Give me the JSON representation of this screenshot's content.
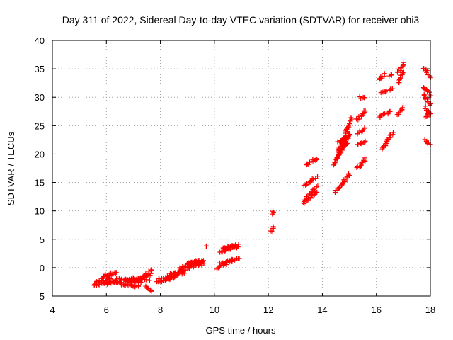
{
  "chart_data": {
    "type": "scatter",
    "title": "Day 311 of 2022, Sidereal Day-to-day VTEC variation (SDTVAR) for receiver ohi3",
    "xlabel": "GPS time / hours",
    "ylabel": "SDTVAR / TECUs",
    "xlim": [
      4,
      18
    ],
    "ylim": [
      -5,
      40
    ],
    "xticks": [
      "4",
      "6",
      "8",
      "10",
      "12",
      "14",
      "16",
      "18"
    ],
    "yticks": [
      "-5",
      "0",
      "5",
      "10",
      "15",
      "20",
      "25",
      "30",
      "35",
      "40"
    ],
    "grid": true,
    "marker": "plus",
    "color": "#ff0000",
    "segments": [
      {
        "x": [
          5.55,
          6.4
        ],
        "y": [
          -3.1,
          -2.4
        ]
      },
      {
        "x": [
          5.6,
          6.2
        ],
        "y": [
          -2.6,
          -2.0
        ]
      },
      {
        "x": [
          5.8,
          6.3
        ],
        "y": [
          -1.8,
          -1.0
        ]
      },
      {
        "x": [
          6.0,
          6.4
        ],
        "y": [
          -1.3,
          -0.9
        ]
      },
      {
        "x": [
          6.1,
          6.6
        ],
        "y": [
          -2.8,
          -2.4
        ]
      },
      {
        "x": [
          6.4,
          7.0
        ],
        "y": [
          -1.9,
          -2.5
        ]
      },
      {
        "x": [
          6.5,
          7.2
        ],
        "y": [
          -2.9,
          -3.3
        ]
      },
      {
        "x": [
          6.7,
          7.3
        ],
        "y": [
          -2.1,
          -2.6
        ]
      },
      {
        "x": [
          6.9,
          7.6
        ],
        "y": [
          -1.8,
          -2.2
        ]
      },
      {
        "x": [
          7.0,
          7.65
        ],
        "y": [
          -2.4,
          -1.2
        ]
      },
      {
        "x": [
          7.3,
          7.7
        ],
        "y": [
          -2.0,
          -0.3
        ]
      },
      {
        "x": [
          7.45,
          7.7
        ],
        "y": [
          -3.4,
          -4.1
        ]
      },
      {
        "x": [
          7.9,
          8.6
        ],
        "y": [
          -2.6,
          -1.6
        ]
      },
      {
        "x": [
          7.95,
          8.4
        ],
        "y": [
          -2.0,
          -1.4
        ]
      },
      {
        "x": [
          8.2,
          8.9
        ],
        "y": [
          -1.9,
          -0.8
        ]
      },
      {
        "x": [
          8.4,
          9.2
        ],
        "y": [
          -1.2,
          0.3
        ]
      },
      {
        "x": [
          8.7,
          9.5
        ],
        "y": [
          -0.1,
          1.4
        ]
      },
      {
        "x": [
          9.0,
          9.6
        ],
        "y": [
          0.7,
          1.1
        ]
      },
      {
        "x": [
          9.1,
          9.6
        ],
        "y": [
          0.4,
          0.6
        ]
      },
      {
        "x": [
          9.7,
          9.7
        ],
        "y": [
          3.8,
          3.8
        ]
      },
      {
        "x": [
          10.1,
          10.7
        ],
        "y": [
          -0.1,
          1.3
        ]
      },
      {
        "x": [
          10.2,
          10.9
        ],
        "y": [
          0.8,
          1.6
        ]
      },
      {
        "x": [
          10.2,
          10.7
        ],
        "y": [
          2.6,
          3.6
        ]
      },
      {
        "x": [
          10.3,
          10.9
        ],
        "y": [
          3.3,
          4.0
        ]
      },
      {
        "x": [
          10.5,
          10.9
        ],
        "y": [
          3.8,
          3.6
        ]
      },
      {
        "x": [
          12.1,
          12.2
        ],
        "y": [
          6.4,
          7.1
        ]
      },
      {
        "x": [
          12.15,
          12.2
        ],
        "y": [
          9.5,
          10.0
        ]
      },
      {
        "x": [
          13.3,
          13.8
        ],
        "y": [
          11.3,
          13.4
        ]
      },
      {
        "x": [
          13.35,
          13.8
        ],
        "y": [
          12.1,
          14.2
        ]
      },
      {
        "x": [
          13.3,
          13.8
        ],
        "y": [
          14.4,
          16.0
        ]
      },
      {
        "x": [
          13.4,
          13.8
        ],
        "y": [
          18.2,
          19.2
        ]
      },
      {
        "x": [
          14.5,
          15.0
        ],
        "y": [
          13.3,
          16.5
        ]
      },
      {
        "x": [
          14.4,
          14.9
        ],
        "y": [
          18.0,
          22.0
        ]
      },
      {
        "x": [
          14.5,
          15.0
        ],
        "y": [
          19.2,
          23.5
        ]
      },
      {
        "x": [
          14.6,
          15.1
        ],
        "y": [
          20.6,
          26.3
        ]
      },
      {
        "x": [
          14.6,
          15.0
        ],
        "y": [
          22.0,
          23.2
        ]
      },
      {
        "x": [
          15.3,
          15.6
        ],
        "y": [
          17.5,
          19.2
        ]
      },
      {
        "x": [
          15.3,
          15.6
        ],
        "y": [
          21.5,
          22.2
        ]
      },
      {
        "x": [
          15.3,
          15.6
        ],
        "y": [
          23.5,
          24.6
        ]
      },
      {
        "x": [
          15.3,
          15.6
        ],
        "y": [
          26.0,
          27.6
        ]
      },
      {
        "x": [
          15.4,
          15.6
        ],
        "y": [
          30.0,
          29.8
        ]
      },
      {
        "x": [
          16.2,
          16.6
        ],
        "y": [
          20.8,
          23.7
        ]
      },
      {
        "x": [
          16.1,
          16.5
        ],
        "y": [
          26.5,
          27.5
        ]
      },
      {
        "x": [
          16.2,
          16.6
        ],
        "y": [
          30.8,
          31.5
        ]
      },
      {
        "x": [
          16.1,
          16.3
        ],
        "y": [
          33.0,
          34.0
        ]
      },
      {
        "x": [
          16.5,
          16.6
        ],
        "y": [
          33.8,
          34.1
        ]
      },
      {
        "x": [
          16.8,
          17.0
        ],
        "y": [
          27.0,
          28.3
        ]
      },
      {
        "x": [
          16.8,
          17.0
        ],
        "y": [
          32.4,
          34.4
        ]
      },
      {
        "x": [
          16.8,
          17.0
        ],
        "y": [
          34.3,
          36.0
        ]
      },
      {
        "x": [
          17.8,
          18.0
        ],
        "y": [
          22.4,
          21.7
        ]
      },
      {
        "x": [
          17.8,
          18.0
        ],
        "y": [
          26.5,
          27.2
        ]
      },
      {
        "x": [
          17.8,
          18.0
        ],
        "y": [
          28.3,
          26.8
        ]
      },
      {
        "x": [
          17.75,
          18.0
        ],
        "y": [
          30.5,
          28.5
        ]
      },
      {
        "x": [
          17.75,
          18.0
        ],
        "y": [
          31.8,
          30.4
        ]
      },
      {
        "x": [
          17.75,
          18.0
        ],
        "y": [
          35.1,
          33.6
        ]
      }
    ]
  }
}
